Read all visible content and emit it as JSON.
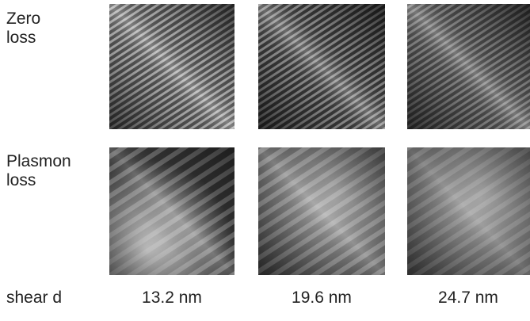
{
  "rows": [
    {
      "label": [
        "Zero",
        "loss"
      ]
    },
    {
      "label": [
        "Plasmon",
        "loss"
      ]
    }
  ],
  "footer": {
    "label": "shear d",
    "columns": [
      "13.2 nm",
      "19.6 nm",
      "24.7 nm"
    ]
  }
}
